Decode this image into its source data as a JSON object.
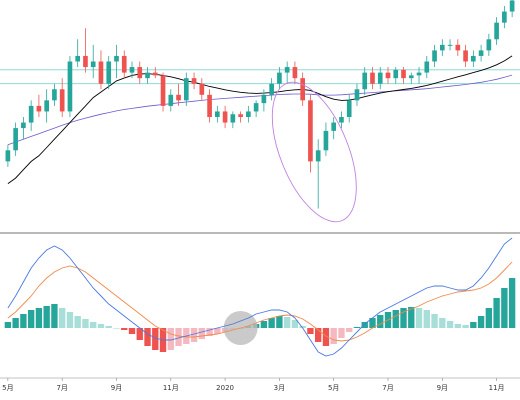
{
  "colors": {
    "up": "#26a69a",
    "down": "#ef5350",
    "ma_short": "#000000",
    "ma_long": "#6a5acd",
    "hline": "#7fd3cf",
    "ellipse": "#c080e0",
    "macd_line": "#4a78e0",
    "signal_line": "#f08a4b",
    "hist_up_strong": "#26a69a",
    "hist_up_weak": "#a8ded8",
    "hist_down_strong": "#ef5350",
    "hist_down_weak": "#f6b8c0",
    "crossover_marker": "#bdbdbd",
    "separator": "#444444"
  },
  "chart_data": [
    {
      "type": "candlestick",
      "title": "",
      "x_tick_labels": [
        "5月",
        "7月",
        "9月",
        "11月",
        "2020",
        "3月",
        "5月",
        "7月",
        "9月",
        "11月"
      ],
      "ylim": [
        20,
        100
      ],
      "hlines": [
        77,
        72
      ],
      "candles": [
        {
          "o": 44,
          "h": 50,
          "l": 42,
          "c": 48
        },
        {
          "o": 48,
          "h": 58,
          "l": 46,
          "c": 56
        },
        {
          "o": 56,
          "h": 60,
          "l": 52,
          "c": 58
        },
        {
          "o": 58,
          "h": 66,
          "l": 55,
          "c": 64
        },
        {
          "o": 64,
          "h": 68,
          "l": 60,
          "c": 62
        },
        {
          "o": 62,
          "h": 70,
          "l": 58,
          "c": 66
        },
        {
          "o": 66,
          "h": 72,
          "l": 64,
          "c": 70
        },
        {
          "o": 70,
          "h": 74,
          "l": 60,
          "c": 62
        },
        {
          "o": 62,
          "h": 82,
          "l": 60,
          "c": 80
        },
        {
          "o": 80,
          "h": 88,
          "l": 78,
          "c": 82
        },
        {
          "o": 82,
          "h": 92,
          "l": 76,
          "c": 78
        },
        {
          "o": 78,
          "h": 86,
          "l": 74,
          "c": 80
        },
        {
          "o": 80,
          "h": 84,
          "l": 70,
          "c": 72
        },
        {
          "o": 72,
          "h": 82,
          "l": 70,
          "c": 80
        },
        {
          "o": 80,
          "h": 86,
          "l": 74,
          "c": 82
        },
        {
          "o": 82,
          "h": 84,
          "l": 74,
          "c": 76
        },
        {
          "o": 76,
          "h": 80,
          "l": 74,
          "c": 78
        },
        {
          "o": 78,
          "h": 80,
          "l": 72,
          "c": 74
        },
        {
          "o": 74,
          "h": 78,
          "l": 72,
          "c": 76
        },
        {
          "o": 76,
          "h": 78,
          "l": 74,
          "c": 75
        },
        {
          "o": 75,
          "h": 76,
          "l": 62,
          "c": 64
        },
        {
          "o": 64,
          "h": 70,
          "l": 62,
          "c": 68
        },
        {
          "o": 68,
          "h": 72,
          "l": 64,
          "c": 66
        },
        {
          "o": 66,
          "h": 76,
          "l": 64,
          "c": 74
        },
        {
          "o": 74,
          "h": 76,
          "l": 70,
          "c": 72
        },
        {
          "o": 72,
          "h": 74,
          "l": 66,
          "c": 68
        },
        {
          "o": 68,
          "h": 70,
          "l": 58,
          "c": 60
        },
        {
          "o": 60,
          "h": 64,
          "l": 58,
          "c": 62
        },
        {
          "o": 62,
          "h": 64,
          "l": 56,
          "c": 58
        },
        {
          "o": 58,
          "h": 62,
          "l": 56,
          "c": 61
        },
        {
          "o": 61,
          "h": 62,
          "l": 58,
          "c": 60
        },
        {
          "o": 60,
          "h": 64,
          "l": 58,
          "c": 62
        },
        {
          "o": 62,
          "h": 66,
          "l": 60,
          "c": 65
        },
        {
          "o": 65,
          "h": 70,
          "l": 62,
          "c": 68
        },
        {
          "o": 68,
          "h": 74,
          "l": 66,
          "c": 72
        },
        {
          "o": 72,
          "h": 78,
          "l": 70,
          "c": 76
        },
        {
          "o": 76,
          "h": 80,
          "l": 72,
          "c": 78
        },
        {
          "o": 78,
          "h": 80,
          "l": 72,
          "c": 74
        },
        {
          "o": 74,
          "h": 76,
          "l": 64,
          "c": 66
        },
        {
          "o": 66,
          "h": 68,
          "l": 40,
          "c": 44
        },
        {
          "o": 44,
          "h": 52,
          "l": 27,
          "c": 48
        },
        {
          "o": 48,
          "h": 58,
          "l": 46,
          "c": 55
        },
        {
          "o": 55,
          "h": 60,
          "l": 52,
          "c": 58
        },
        {
          "o": 58,
          "h": 62,
          "l": 56,
          "c": 60
        },
        {
          "o": 60,
          "h": 68,
          "l": 58,
          "c": 66
        },
        {
          "o": 66,
          "h": 72,
          "l": 64,
          "c": 70
        },
        {
          "o": 70,
          "h": 78,
          "l": 68,
          "c": 76
        },
        {
          "o": 76,
          "h": 78,
          "l": 70,
          "c": 72
        },
        {
          "o": 72,
          "h": 78,
          "l": 70,
          "c": 76
        },
        {
          "o": 76,
          "h": 78,
          "l": 72,
          "c": 74
        },
        {
          "o": 74,
          "h": 78,
          "l": 72,
          "c": 77
        },
        {
          "o": 77,
          "h": 78,
          "l": 72,
          "c": 74
        },
        {
          "o": 74,
          "h": 76,
          "l": 72,
          "c": 75
        },
        {
          "o": 75,
          "h": 78,
          "l": 72,
          "c": 76
        },
        {
          "o": 76,
          "h": 82,
          "l": 74,
          "c": 80
        },
        {
          "o": 80,
          "h": 86,
          "l": 78,
          "c": 84
        },
        {
          "o": 84,
          "h": 88,
          "l": 82,
          "c": 86
        },
        {
          "o": 86,
          "h": 88,
          "l": 84,
          "c": 86
        },
        {
          "o": 86,
          "h": 88,
          "l": 82,
          "c": 84
        },
        {
          "o": 84,
          "h": 86,
          "l": 78,
          "c": 80
        },
        {
          "o": 80,
          "h": 84,
          "l": 78,
          "c": 82
        },
        {
          "o": 82,
          "h": 86,
          "l": 80,
          "c": 84
        },
        {
          "o": 84,
          "h": 90,
          "l": 82,
          "c": 88
        },
        {
          "o": 88,
          "h": 96,
          "l": 86,
          "c": 94
        },
        {
          "o": 94,
          "h": 100,
          "l": 92,
          "c": 98
        },
        {
          "o": 98,
          "h": 104,
          "l": 96,
          "c": 102
        }
      ],
      "ma_short": [
        36,
        38,
        41,
        44,
        46,
        49,
        52,
        55,
        58,
        61,
        64,
        67,
        69,
        71,
        73,
        74,
        75,
        75.5,
        75.6,
        75.4,
        75,
        74.5,
        73.8,
        73,
        72.5,
        71.8,
        71,
        70.4,
        69.8,
        69.3,
        68.9,
        68.6,
        68.5,
        68.6,
        68.8,
        69.1,
        69.5,
        69.8,
        69.9,
        69.6,
        68.5,
        67.3,
        66.4,
        66,
        66.1,
        66.6,
        67.3,
        68,
        68.6,
        69.1,
        69.5,
        69.9,
        70.3,
        70.8,
        71.4,
        72.1,
        72.9,
        73.7,
        74.5,
        75.2,
        76,
        76.8,
        77.7,
        78.8,
        80.2,
        82
      ],
      "ma_long": [
        50,
        51,
        52,
        53,
        54,
        55,
        56,
        57,
        58,
        58.8,
        59.6,
        60.3,
        61,
        61.6,
        62.2,
        62.7,
        63.1,
        63.5,
        63.9,
        64.2,
        64.5,
        64.8,
        65.1,
        65.4,
        65.7,
        66,
        66.3,
        66.5,
        66.7,
        66.9,
        67.1,
        67.3,
        67.5,
        67.7,
        67.9,
        68.1,
        68.2,
        68.3,
        68.3,
        68.2,
        68,
        67.9,
        67.9,
        68,
        68.2,
        68.4,
        68.6,
        68.8,
        69,
        69.2,
        69.4,
        69.6,
        69.8,
        70,
        70.2,
        70.5,
        70.8,
        71.1,
        71.4,
        71.7,
        72.1,
        72.5,
        73,
        73.6,
        74.3,
        75.1
      ]
    },
    {
      "type": "macd",
      "title": "",
      "x_tick_labels": [
        "5月",
        "7月",
        "9月",
        "11月",
        "2020",
        "3月",
        "5月",
        "7月",
        "9月",
        "11月"
      ],
      "ylim": [
        -2.2,
        4.5
      ],
      "histogram": [
        0.3,
        0.5,
        0.7,
        0.9,
        1.0,
        1.1,
        1.2,
        1.0,
        0.8,
        0.6,
        0.45,
        0.3,
        0.2,
        0.1,
        0.0,
        -0.1,
        -0.3,
        -0.6,
        -0.9,
        -1.1,
        -1.2,
        -1.1,
        -0.9,
        -0.8,
        -0.7,
        -0.55,
        -0.4,
        -0.3,
        -0.2,
        -0.1,
        0.0,
        0.1,
        0.2,
        0.35,
        0.5,
        0.6,
        0.55,
        0.4,
        0.1,
        -0.3,
        -0.7,
        -0.9,
        -0.8,
        -0.5,
        -0.2,
        0.05,
        0.3,
        0.5,
        0.65,
        0.8,
        0.9,
        1.0,
        1.05,
        1.0,
        0.9,
        0.7,
        0.5,
        0.35,
        0.2,
        0.15,
        0.3,
        0.6,
        1.0,
        1.5,
        2.0,
        2.5
      ],
      "macd_line": [
        1.0,
        1.6,
        2.3,
        3.0,
        3.5,
        3.9,
        4.1,
        3.9,
        3.5,
        3.0,
        2.5,
        2.0,
        1.6,
        1.2,
        0.9,
        0.6,
        0.3,
        0.0,
        -0.3,
        -0.5,
        -0.6,
        -0.6,
        -0.5,
        -0.4,
        -0.3,
        -0.2,
        -0.1,
        0.0,
        0.1,
        0.2,
        0.35,
        0.5,
        0.7,
        0.8,
        0.9,
        0.9,
        0.8,
        0.5,
        0.0,
        -0.6,
        -1.2,
        -1.4,
        -1.3,
        -1.0,
        -0.6,
        -0.2,
        0.2,
        0.5,
        0.8,
        1.0,
        1.2,
        1.4,
        1.6,
        1.8,
        2.0,
        2.1,
        2.1,
        2.0,
        1.9,
        1.9,
        2.1,
        2.5,
        3.0,
        3.6,
        4.2,
        4.5
      ],
      "signal_line": [
        0.5,
        0.8,
        1.2,
        1.6,
        2.1,
        2.5,
        2.8,
        3.0,
        3.1,
        3.0,
        2.8,
        2.5,
        2.2,
        1.9,
        1.6,
        1.3,
        1.0,
        0.7,
        0.4,
        0.1,
        -0.1,
        -0.3,
        -0.4,
        -0.45,
        -0.45,
        -0.4,
        -0.35,
        -0.3,
        -0.2,
        -0.1,
        0.0,
        0.1,
        0.25,
        0.4,
        0.5,
        0.6,
        0.65,
        0.6,
        0.45,
        0.2,
        -0.1,
        -0.4,
        -0.6,
        -0.65,
        -0.6,
        -0.45,
        -0.25,
        0.0,
        0.2,
        0.4,
        0.6,
        0.8,
        0.95,
        1.1,
        1.3,
        1.45,
        1.6,
        1.7,
        1.8,
        1.85,
        1.9,
        2.0,
        2.2,
        2.5,
        2.9,
        3.3
      ]
    }
  ]
}
